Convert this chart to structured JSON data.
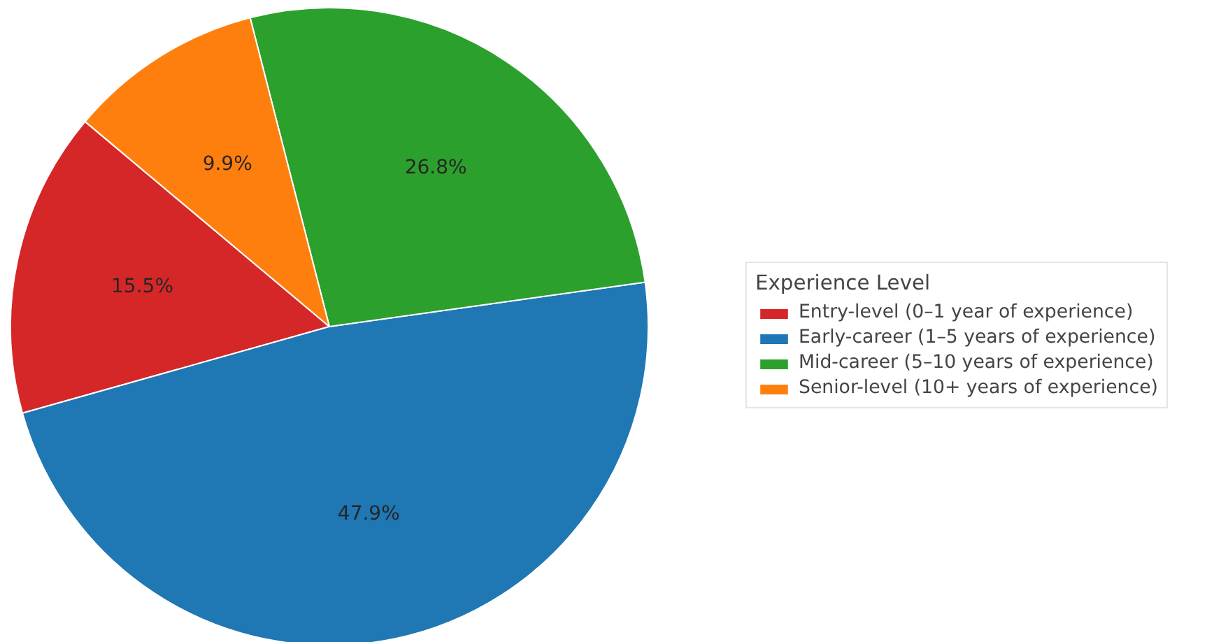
{
  "chart_data": {
    "type": "pie",
    "categories": [
      "Entry-level (0–1 year of experience)",
      "Early-career (1–5 years of experience)",
      "Mid-career (5–10 years of experience)",
      "Senior-level (10+ years of experience)"
    ],
    "values": [
      15.5,
      47.9,
      26.8,
      9.9
    ],
    "value_labels": [
      "15.5%",
      "47.9%",
      "26.8%",
      "9.9%"
    ],
    "colors": [
      "#d62728",
      "#1f77b4",
      "#2ca02c",
      "#ff7f0e"
    ],
    "legend_title": "Experience Level",
    "legend": "right"
  }
}
